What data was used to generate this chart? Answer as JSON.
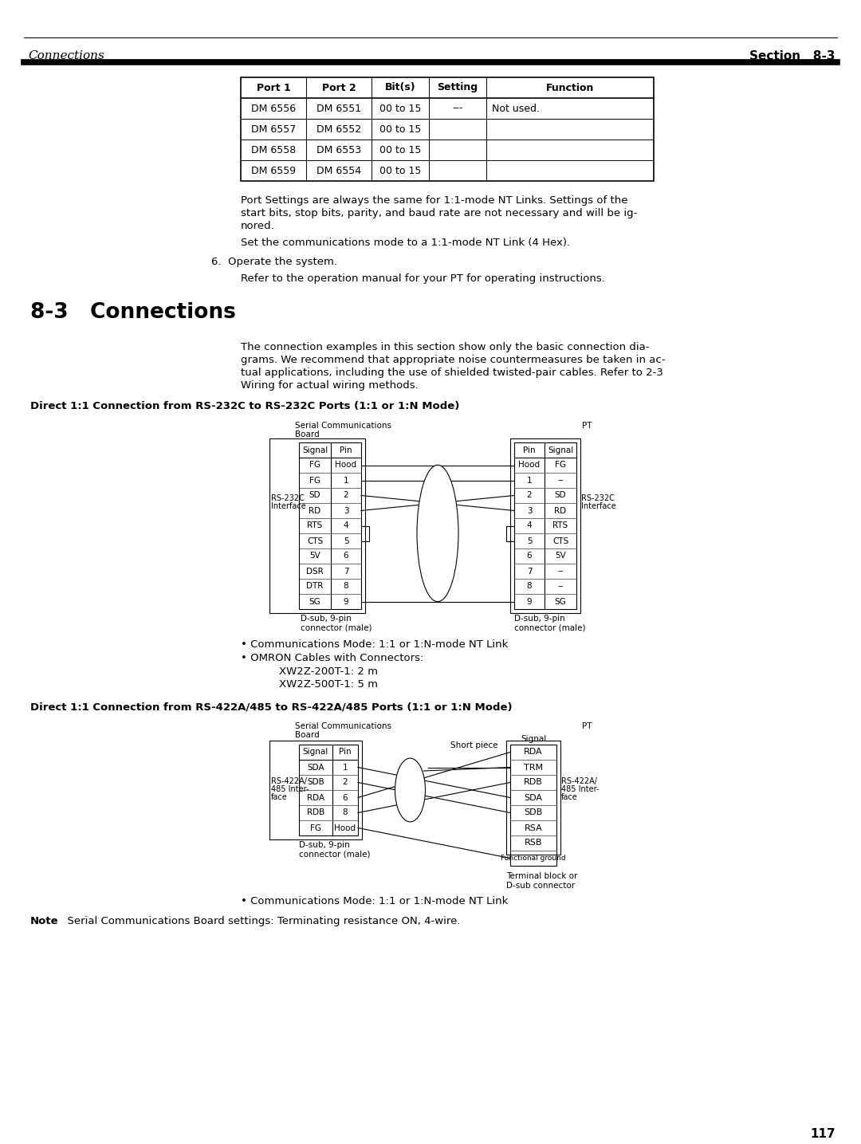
{
  "header_left": "Connections",
  "header_right": "Section   8-3",
  "page_number": "117",
  "table_headers": [
    "Port 1",
    "Port 2",
    "Bit(s)",
    "Setting",
    "Function"
  ],
  "table_rows": [
    [
      "DM 6556",
      "DM 6551",
      "00 to 15",
      "---",
      "Not used."
    ],
    [
      "DM 6557",
      "DM 6552",
      "00 to 15",
      "",
      ""
    ],
    [
      "DM 6558",
      "DM 6553",
      "00 to 15",
      "",
      ""
    ],
    [
      "DM 6559",
      "DM 6554",
      "00 to 15",
      "",
      ""
    ]
  ],
  "para1": "Port Settings are always the same for 1:1-mode NT Links. Settings of the",
  "para1b": "start bits, stop bits, parity, and baud rate are not necessary and will be ig-",
  "para1c": "nored.",
  "para2": "Set the communications mode to a 1:1-mode NT Link (4 Hex).",
  "para3": "6.  Operate the system.",
  "para4": "Refer to the operation manual for your PT for operating instructions.",
  "section_title": "8-3   Connections",
  "intro1": "The connection examples in this section show only the basic connection dia-",
  "intro2": "grams. We recommend that appropriate noise countermeasures be taken in ac-",
  "intro3": "tual applications, including the use of shielded twisted-pair cables. Refer to 2-3",
  "intro4": "Wiring for actual wiring methods.",
  "diag1_title": "Direct 1:1 Connection from RS-232C to RS-232C Ports (1:1 or 1:N Mode)",
  "diag2_title": "Direct 1:1 Connection from RS-422A/485 to RS-422A/485 Ports (1:1 or 1:N Mode)",
  "rs232_left_signals": [
    "FG",
    "FG",
    "SD",
    "RD",
    "RTS",
    "CTS",
    "5V",
    "DSR",
    "DTR",
    "SG"
  ],
  "rs232_left_pins": [
    "Hood",
    "1",
    "2",
    "3",
    "4",
    "5",
    "6",
    "7",
    "8",
    "9"
  ],
  "rs232_right_pins": [
    "Hood",
    "1",
    "2",
    "3",
    "4",
    "5",
    "6",
    "7",
    "8",
    "9"
  ],
  "rs232_right_signals": [
    "FG",
    "--",
    "SD",
    "RD",
    "RTS",
    "CTS",
    "5V",
    "--",
    "--",
    "SG"
  ],
  "bullet1_232": "Communications Mode: 1:1 or 1:N-mode NT Link",
  "bullet2_232_title": "OMRON Cables with Connectors:",
  "bullet2_232_items": [
    "XW2Z-200T-1: 2 m",
    "XW2Z-500T-1: 5 m"
  ],
  "rs422_left_signals": [
    "SDA",
    "SDB",
    "RDA",
    "RDB",
    "FG"
  ],
  "rs422_left_pins": [
    "1",
    "2",
    "6",
    "8",
    "Hood"
  ],
  "rs422_right_signals": [
    "RDA",
    "TRM",
    "RDB",
    "SDA",
    "SDB",
    "RSA",
    "RSB",
    "Functional ground"
  ],
  "bullet1_422": "Communications Mode: 1:1 or 1:N-mode NT Link",
  "note_bold": "Note",
  "note_text": "  Serial Communications Board settings: Terminating resistance ON, 4-wire."
}
